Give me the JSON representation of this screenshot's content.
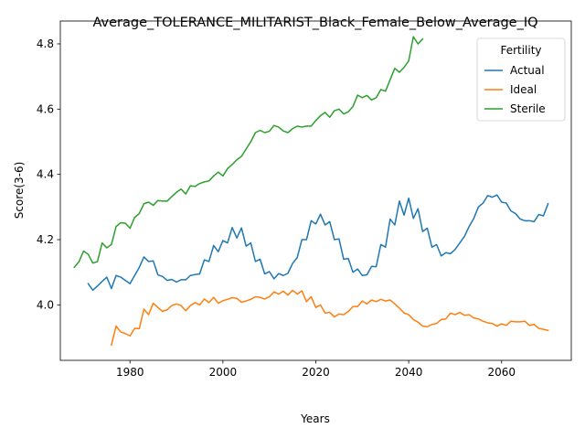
{
  "chart_data": {
    "type": "line",
    "title": "Average_TOLERANCE_MILITARIST_Black_Female_Below_Average_IQ",
    "xlabel": "Years",
    "ylabel": "Score(3-6)",
    "xlim": [
      1965,
      2075
    ],
    "ylim": [
      3.83,
      4.87
    ],
    "xticks": [
      1980,
      2000,
      2020,
      2040,
      2060
    ],
    "yticks": [
      4.0,
      4.2,
      4.4,
      4.6,
      4.8
    ],
    "ytick_labels": [
      "4.0",
      "4.2",
      "4.4",
      "4.6",
      "4.8"
    ],
    "grid": false,
    "legend": {
      "title": "Fertility",
      "placement": "top-right"
    },
    "series": [
      {
        "name": "Actual",
        "color": "#1f77b4",
        "x": [
          1971,
          1972,
          1973,
          1974,
          1975,
          1976,
          1977,
          1978,
          1979,
          1980,
          1981,
          1982,
          1983,
          1984,
          1985,
          1986,
          1987,
          1988,
          1989,
          1990,
          1991,
          1992,
          1993,
          1994,
          1995,
          1996,
          1997,
          1998,
          1999,
          2000,
          2001,
          2002,
          2003,
          2004,
          2005,
          2006,
          2007,
          2008,
          2009,
          2010,
          2011,
          2012,
          2013,
          2014,
          2015,
          2016,
          2017,
          2018,
          2019,
          2020,
          2021,
          2022,
          2023,
          2024,
          2025,
          2026,
          2027,
          2028,
          2029,
          2030,
          2031,
          2032,
          2033,
          2034,
          2035,
          2036,
          2037,
          2038,
          2039,
          2040,
          2041,
          2042,
          2043,
          2044,
          2045,
          2046,
          2047,
          2048,
          2049,
          2050,
          2051,
          2052,
          2053,
          2054,
          2055,
          2056,
          2057,
          2058,
          2059,
          2060,
          2061,
          2062,
          2063,
          2064,
          2065,
          2066,
          2067,
          2068,
          2069,
          2070
        ],
        "y": [
          4.065,
          4.045,
          4.058,
          4.072,
          4.085,
          4.05,
          4.09,
          4.085,
          4.075,
          4.065,
          4.09,
          4.115,
          4.147,
          4.133,
          4.135,
          4.092,
          4.087,
          4.075,
          4.078,
          4.07,
          4.077,
          4.077,
          4.09,
          4.093,
          4.095,
          4.138,
          4.133,
          4.182,
          4.163,
          4.197,
          4.19,
          4.237,
          4.205,
          4.236,
          4.18,
          4.19,
          4.133,
          4.14,
          4.095,
          4.102,
          4.08,
          4.096,
          4.09,
          4.097,
          4.127,
          4.145,
          4.2,
          4.2,
          4.258,
          4.248,
          4.278,
          4.245,
          4.255,
          4.2,
          4.202,
          4.14,
          4.142,
          4.1,
          4.11,
          4.09,
          4.092,
          4.118,
          4.117,
          4.185,
          4.177,
          4.263,
          4.245,
          4.318,
          4.275,
          4.327,
          4.265,
          4.295,
          4.225,
          4.235,
          4.177,
          4.185,
          4.15,
          4.16,
          4.157,
          4.17,
          4.19,
          4.21,
          4.24,
          4.265,
          4.3,
          4.312,
          4.335,
          4.33,
          4.337,
          4.315,
          4.312,
          4.288,
          4.28,
          4.263,
          4.258,
          4.258,
          4.255,
          4.277,
          4.273,
          4.31
        ]
      },
      {
        "name": "Ideal",
        "color": "#ff7f0e",
        "x": [
          1976,
          1977,
          1978,
          1979,
          1980,
          1981,
          1982,
          1983,
          1984,
          1985,
          1986,
          1987,
          1988,
          1989,
          1990,
          1991,
          1992,
          1993,
          1994,
          1995,
          1996,
          1997,
          1998,
          1999,
          2000,
          2001,
          2002,
          2003,
          2004,
          2005,
          2006,
          2007,
          2008,
          2009,
          2010,
          2011,
          2012,
          2013,
          2014,
          2015,
          2016,
          2017,
          2018,
          2019,
          2020,
          2021,
          2022,
          2023,
          2024,
          2025,
          2026,
          2027,
          2028,
          2029,
          2030,
          2031,
          2032,
          2033,
          2034,
          2035,
          2036,
          2037,
          2038,
          2039,
          2040,
          2041,
          2042,
          2043,
          2044,
          2045,
          2046,
          2047,
          2048,
          2049,
          2050,
          2051,
          2052,
          2053,
          2054,
          2055,
          2056,
          2057,
          2058,
          2059,
          2060,
          2061,
          2062,
          2063,
          2064,
          2065,
          2066,
          2067,
          2068,
          2069,
          2070
        ],
        "y": [
          3.877,
          3.935,
          3.917,
          3.912,
          3.905,
          3.928,
          3.927,
          3.987,
          3.97,
          4.005,
          3.992,
          3.98,
          3.985,
          3.998,
          4.003,
          3.998,
          3.982,
          3.998,
          4.007,
          4.0,
          4.018,
          4.007,
          4.023,
          4.005,
          4.013,
          4.017,
          4.022,
          4.02,
          4.008,
          4.012,
          4.017,
          4.025,
          4.023,
          4.018,
          4.025,
          4.04,
          4.033,
          4.042,
          4.03,
          4.045,
          4.033,
          4.043,
          4.01,
          4.025,
          3.992,
          4.0,
          3.975,
          3.977,
          3.963,
          3.972,
          3.97,
          3.98,
          3.995,
          3.995,
          4.012,
          4.003,
          4.015,
          4.01,
          4.017,
          4.012,
          4.015,
          4.003,
          3.99,
          3.975,
          3.97,
          3.955,
          3.947,
          3.935,
          3.933,
          3.94,
          3.943,
          3.955,
          3.957,
          3.975,
          3.97,
          3.977,
          3.968,
          3.97,
          3.96,
          3.957,
          3.95,
          3.945,
          3.943,
          3.935,
          3.942,
          3.937,
          3.95,
          3.948,
          3.948,
          3.95,
          3.937,
          3.94,
          3.928,
          3.925,
          3.922
        ]
      },
      {
        "name": "Sterile",
        "color": "#2ca02c",
        "x": [
          1968,
          1969,
          1970,
          1971,
          1972,
          1973,
          1974,
          1975,
          1976,
          1977,
          1978,
          1979,
          1980,
          1981,
          1982,
          1983,
          1984,
          1985,
          1986,
          1987,
          1988,
          1989,
          1990,
          1991,
          1992,
          1993,
          1994,
          1995,
          1996,
          1997,
          1998,
          1999,
          2000,
          2001,
          2002,
          2003,
          2004,
          2005,
          2006,
          2007,
          2008,
          2009,
          2010,
          2011,
          2012,
          2013,
          2014,
          2015,
          2016,
          2017,
          2018,
          2019,
          2020,
          2021,
          2022,
          2023,
          2024,
          2025,
          2026,
          2027,
          2028,
          2029,
          2030,
          2031,
          2032,
          2033,
          2034,
          2035,
          2036,
          2037,
          2038,
          2039,
          2040,
          2041,
          2042,
          2043
        ],
        "y": [
          4.115,
          4.132,
          4.165,
          4.155,
          4.128,
          4.133,
          4.19,
          4.175,
          4.185,
          4.24,
          4.252,
          4.25,
          4.235,
          4.268,
          4.28,
          4.31,
          4.315,
          4.305,
          4.32,
          4.318,
          4.318,
          4.332,
          4.345,
          4.355,
          4.34,
          4.365,
          4.363,
          4.372,
          4.377,
          4.38,
          4.395,
          4.407,
          4.395,
          4.418,
          4.43,
          4.445,
          4.455,
          4.478,
          4.5,
          4.528,
          4.535,
          4.528,
          4.532,
          4.55,
          4.545,
          4.533,
          4.528,
          4.54,
          4.548,
          4.545,
          4.548,
          4.548,
          4.565,
          4.58,
          4.59,
          4.575,
          4.595,
          4.6,
          4.585,
          4.592,
          4.608,
          4.643,
          4.635,
          4.642,
          4.628,
          4.635,
          4.66,
          4.655,
          4.69,
          4.725,
          4.713,
          4.728,
          4.748,
          4.822,
          4.8,
          4.815
        ]
      }
    ]
  }
}
